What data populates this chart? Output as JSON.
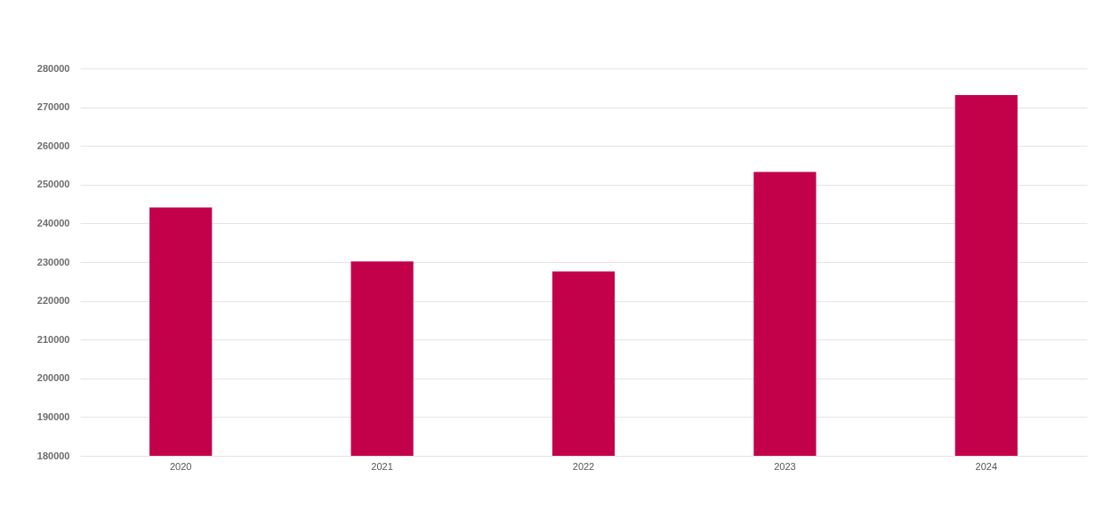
{
  "chart_data": {
    "type": "bar",
    "categories": [
      "2020",
      "2021",
      "2022",
      "2023",
      "2024"
    ],
    "values": [
      244100,
      230200,
      227600,
      253300,
      273100
    ],
    "color": "#c3004a",
    "ylim": [
      180000,
      280000
    ],
    "yticks": [
      180000,
      190000,
      200000,
      210000,
      220000,
      230000,
      240000,
      250000,
      260000,
      270000,
      280000
    ],
    "grid": "y"
  }
}
